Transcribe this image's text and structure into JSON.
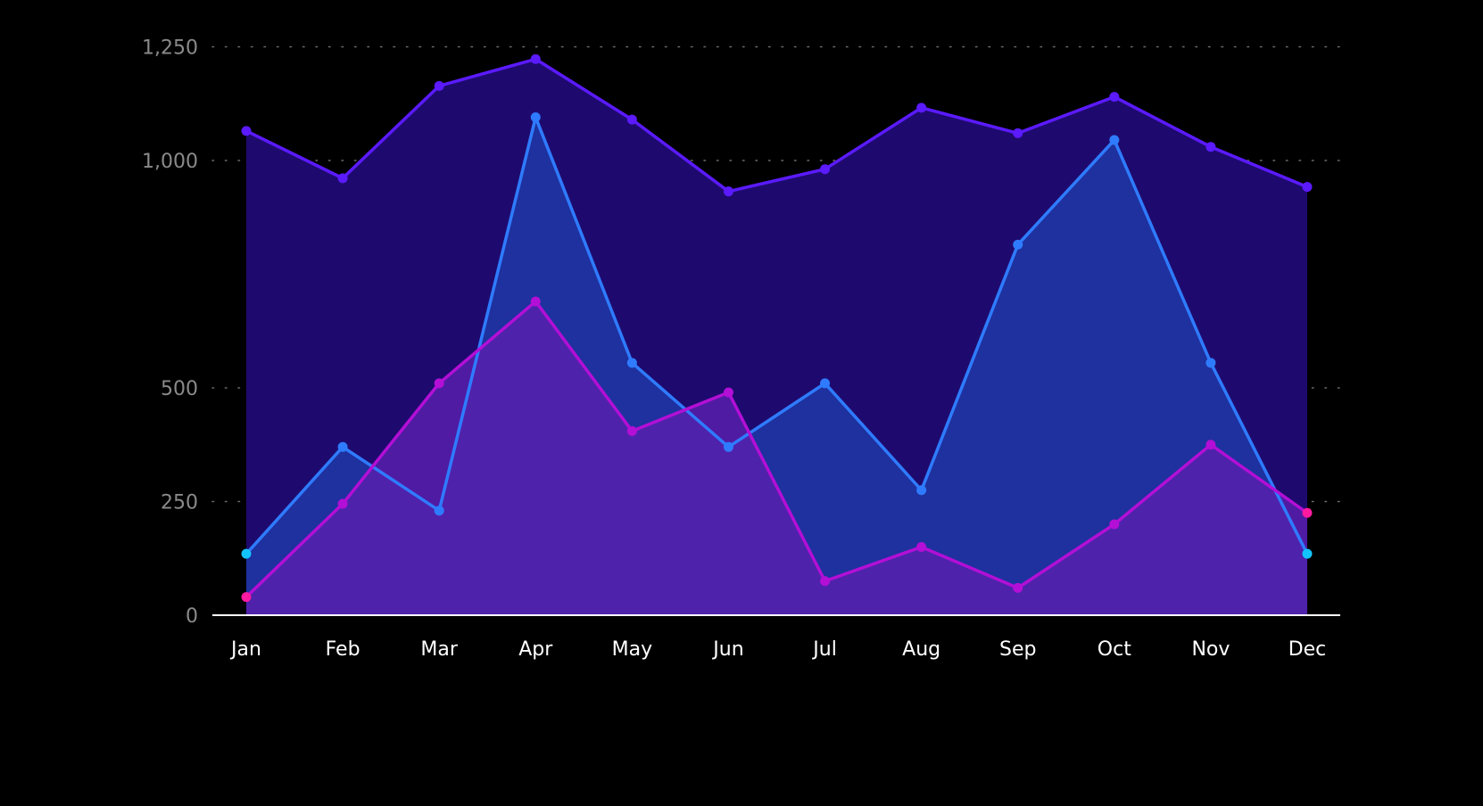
{
  "chart_data": {
    "type": "area",
    "categories": [
      "Jan",
      "Feb",
      "Mar",
      "Apr",
      "May",
      "Jun",
      "Jul",
      "Aug",
      "Sep",
      "Oct",
      "Nov",
      "Dec"
    ],
    "yticks": [
      0,
      250,
      500,
      1000,
      1250
    ],
    "ytick_labels": [
      "0",
      "250",
      "500",
      "1,000",
      "1,250"
    ],
    "grid": true,
    "legend": "none",
    "series": [
      {
        "values": [
          1065,
          961,
          1164,
          1223,
          1090,
          932,
          981,
          1116,
          1060,
          1140,
          1030,
          942
        ],
        "line_color": "#5b1aff",
        "fill_color": "#1e0a6e",
        "marker_color": "#5b1aff",
        "end_marker_color": "#5b1aff"
      },
      {
        "values": [
          135,
          370,
          230,
          1095,
          555,
          370,
          510,
          275,
          815,
          1045,
          555,
          135
        ],
        "line_color": "#2f7bff",
        "fill_color": "#1e3aa8",
        "marker_color": "#2f7bff",
        "end_marker_color": "#12c5ff"
      },
      {
        "values": [
          40,
          245,
          510,
          690,
          405,
          490,
          75,
          150,
          60,
          200,
          375,
          225
        ],
        "line_color": "#b30fd6",
        "fill_color": "#5a20ad",
        "marker_color": "#b30fd6",
        "end_marker_color": "#ff1aa0"
      }
    ]
  }
}
